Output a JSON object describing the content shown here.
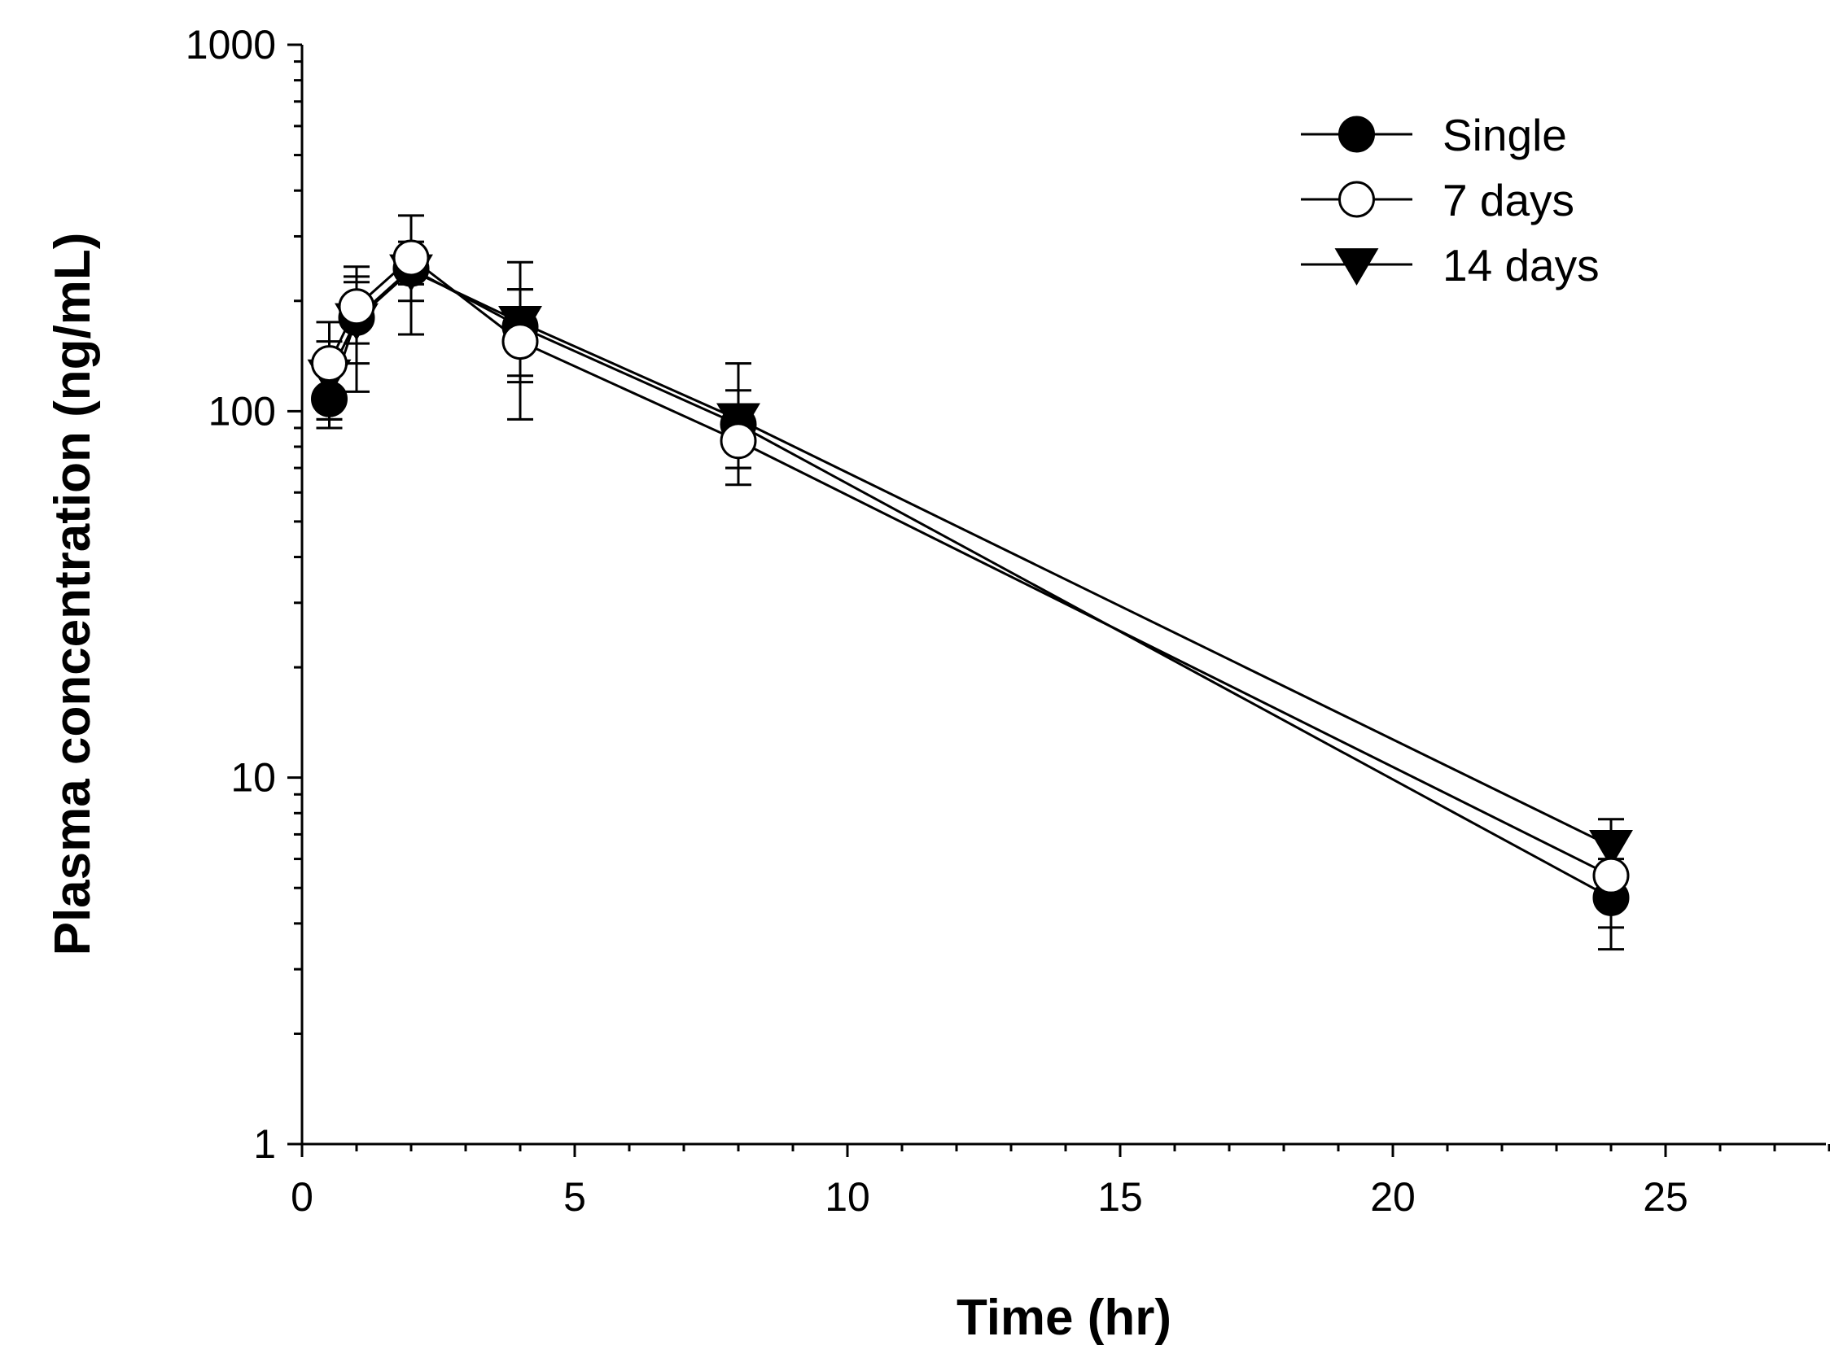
{
  "chart_data": {
    "type": "line",
    "title": "",
    "xlabel": "Time (hr)",
    "ylabel": "Plasma concentration (ng/mL)",
    "xlim": [
      0,
      28
    ],
    "ylim": [
      1,
      1000
    ],
    "yscale": "log",
    "grid": false,
    "legend_position": "top-right",
    "x_ticks": [
      0,
      5,
      10,
      15,
      20,
      25
    ],
    "x_tick_labels": [
      "0",
      "5",
      "10",
      "15",
      "20",
      "25"
    ],
    "y_ticks": [
      1,
      10,
      100,
      1000
    ],
    "y_tick_labels": [
      "1",
      "10",
      "100",
      "1000"
    ],
    "x": [
      0.5,
      1,
      2,
      4,
      8,
      24
    ],
    "series": [
      {
        "name": "Single",
        "marker": "filled-circle",
        "values": [
          108,
          180,
          245,
          170,
          92,
          4.7
        ],
        "err_low": [
          18,
          45,
          45,
          45,
          22,
          1.3
        ],
        "err_high": [
          18,
          45,
          45,
          45,
          22,
          1.3
        ]
      },
      {
        "name": "7 days",
        "marker": "open-circle",
        "values": [
          135,
          193,
          262,
          155,
          83,
          5.4
        ],
        "err_low": [
          40,
          40,
          100,
          60,
          20,
          1.5
        ],
        "err_high": [
          40,
          40,
          80,
          60,
          20,
          1.5
        ]
      },
      {
        "name": "14 days",
        "marker": "filled-triangle-down",
        "values": [
          125,
          178,
          242,
          175,
          95,
          6.5
        ],
        "err_low": [
          30,
          65,
          20,
          55,
          25,
          1.2
        ],
        "err_high": [
          30,
          70,
          25,
          80,
          40,
          1.2
        ]
      }
    ]
  }
}
